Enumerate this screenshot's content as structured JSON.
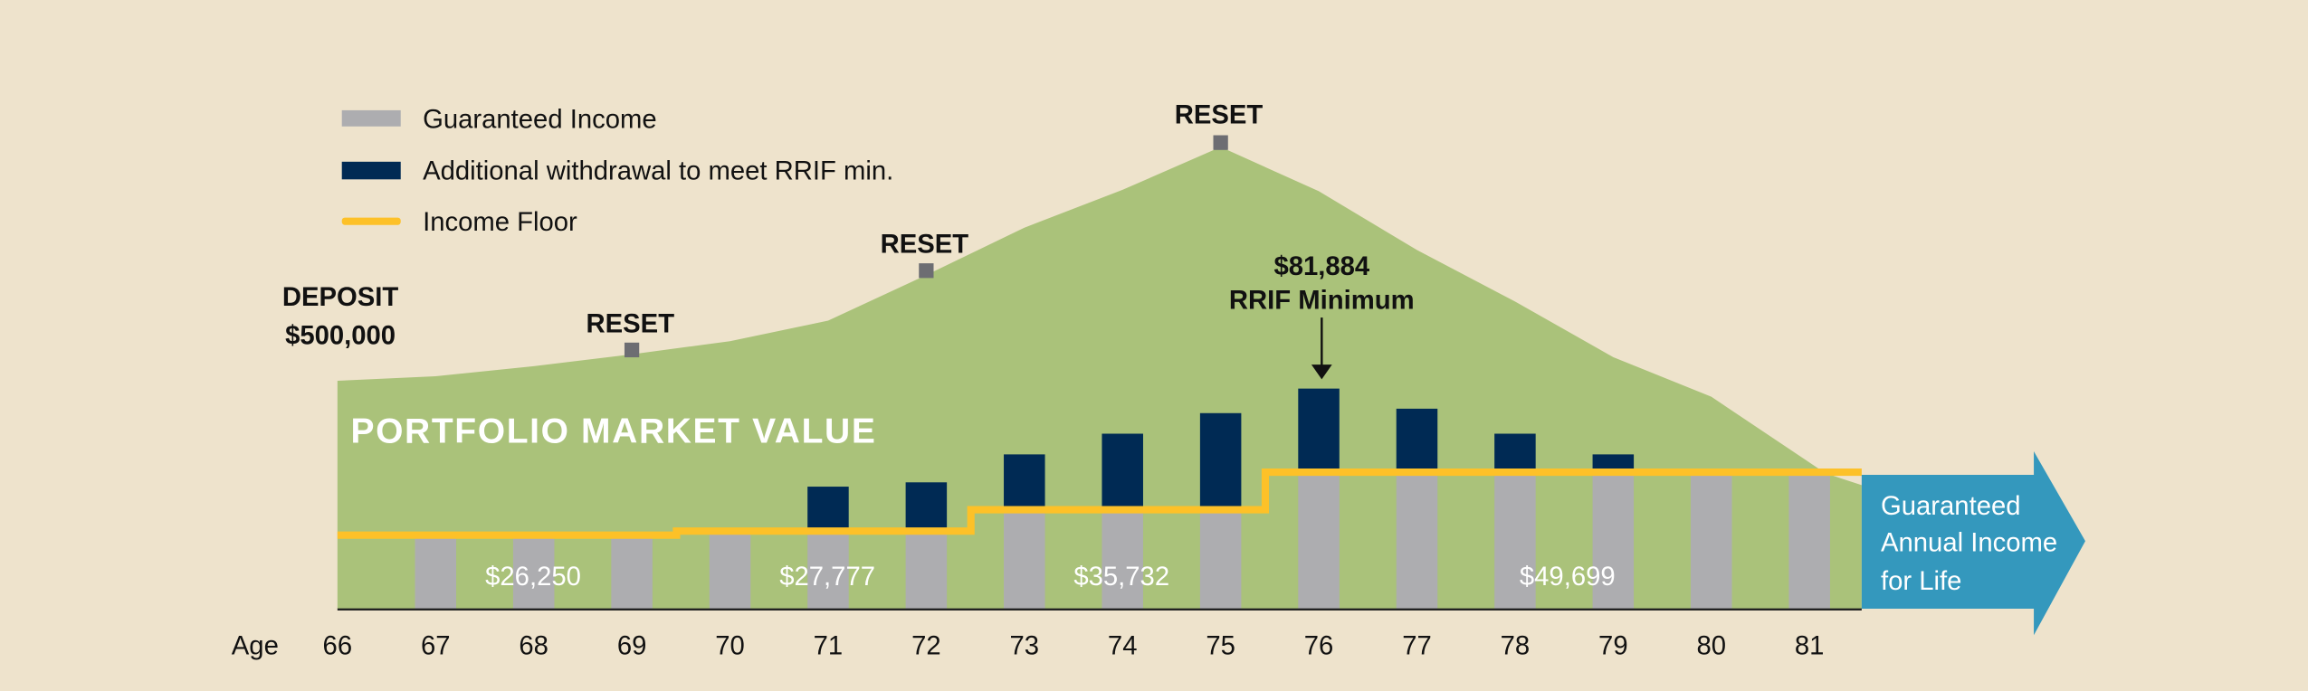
{
  "colors": {
    "background": "#EEE3CC",
    "portfolio": "#AAC27A",
    "guaranteed": "#ADADB0",
    "additional": "#002A54",
    "floor": "#FDC128",
    "arrow": "#3498BD",
    "reset_marker": "#6D6D72"
  },
  "legend": [
    {
      "label": "Guaranteed Income",
      "icon": "gray-swatch"
    },
    {
      "label": "Additional withdrawal to meet RRIF min.",
      "icon": "navy-swatch"
    },
    {
      "label": "Income Floor",
      "icon": "yellow-line"
    }
  ],
  "annotations": {
    "deposit_title": "DEPOSIT",
    "deposit_amount": "$500,000",
    "reset": "RESET",
    "rrif_amount": "$81,884",
    "rrif_label": "RRIF Minimum",
    "portfolio_label": "PORTFOLIO MARKET VALUE",
    "arrow_line1": "Guaranteed",
    "arrow_line2": "Annual Income",
    "arrow_line3": "for Life"
  },
  "chart_data": {
    "type": "bar",
    "xlabel": "Age",
    "categories": [
      "66",
      "67",
      "68",
      "69",
      "70",
      "71",
      "72",
      "73",
      "74",
      "75",
      "76",
      "77",
      "78",
      "79",
      "80",
      "81"
    ],
    "series": [
      {
        "name": "Guaranteed Income",
        "values": [
          null,
          26250,
          26250,
          26250,
          27777,
          27777,
          27777,
          35732,
          35732,
          35732,
          49699,
          49699,
          49699,
          49699,
          49699,
          49699
        ]
      },
      {
        "name": "Additional withdrawal to meet RRIF min.",
        "total_withdrawal": [
          null,
          null,
          null,
          null,
          null,
          45400,
          47000,
          57400,
          65100,
          72750,
          81884,
          74400,
          65100,
          57400,
          null,
          null
        ]
      },
      {
        "name": "Income Floor",
        "values": [
          26250,
          26250,
          26250,
          26250,
          27777,
          27777,
          27777,
          35732,
          35732,
          35732,
          49699,
          49699,
          49699,
          49699,
          49699,
          49699
        ]
      },
      {
        "name": "PORTFOLIO MARKET VALUE",
        "type": "area",
        "values": [
          500000,
          510000,
          532000,
          558000,
          587000,
          632000,
          732000,
          836000,
          919000,
          1013000,
          916000,
          787000,
          674000,
          552000,
          465000,
          297000
        ]
      }
    ],
    "reset_ages": [
      "69",
      "72",
      "75"
    ],
    "floor_labels": [
      {
        "age_from": "67",
        "age_to": "69",
        "label": "$26,250"
      },
      {
        "age_from": "70",
        "age_to": "72",
        "label": "$27,777"
      },
      {
        "age_from": "73",
        "age_to": "75",
        "label": "$35,732"
      },
      {
        "age_from": "76",
        "age_to": "81",
        "label": "$49,699"
      }
    ],
    "grid": false,
    "legend_position": "top-left"
  }
}
